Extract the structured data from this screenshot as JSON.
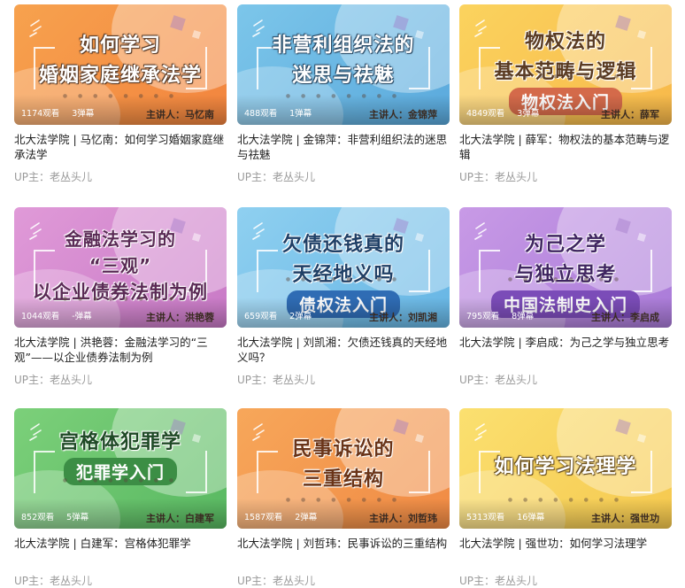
{
  "videos": [
    {
      "thumb": {
        "lines": [
          "如何学习",
          "婚姻家庭继承法学"
        ],
        "badge": "",
        "lecturer": "主讲人：马忆南"
      },
      "views": "1174观看",
      "danmaku": "3弹幕",
      "title": "北大法学院 | 马忆南：如何学习婚姻家庭继承法学",
      "uploader": "UP主：老丛头儿",
      "colors": {
        "bg1": "#f7a24e",
        "bg2": "#f2843e",
        "text": "#ffffff",
        "stroke": "#5a3d2a",
        "badge": ""
      }
    },
    {
      "thumb": {
        "lines": [
          "非营利组织法的",
          "迷思与祛魅"
        ],
        "badge": "",
        "lecturer": "主讲人：金锦萍"
      },
      "views": "488观看",
      "danmaku": "1弹幕",
      "title": "北大法学院 | 金锦萍：非营利组织法的迷思与祛魅",
      "uploader": "UP主：老丛头儿",
      "colors": {
        "bg1": "#7cc6ea",
        "bg2": "#5aa9dc",
        "text": "#ffffff",
        "stroke": "#2f4f6a",
        "badge": ""
      }
    },
    {
      "thumb": {
        "lines": [
          "物权法的",
          "基本范畴与逻辑"
        ],
        "badge": "物权法入门",
        "lecturer": "主讲人：薛军"
      },
      "views": "4849观看",
      "danmaku": "3弹幕",
      "title": "北大法学院 | 薛军：物权法的基本范畴与逻辑",
      "uploader": "UP主：老丛头儿",
      "colors": {
        "bg1": "#fbd35e",
        "bg2": "#f7b84a",
        "text": "#5a3b22",
        "stroke": "#ffffff",
        "badge": "#d46a4a"
      }
    },
    {
      "thumb": {
        "lines": [
          "金融法学习的",
          "“三观”",
          "以企业债券法制为例"
        ],
        "badge": "",
        "lecturer": "主讲人：洪艳蓉"
      },
      "views": "1044观看",
      "danmaku": "-弹幕",
      "title": "北大法学院 | 洪艳蓉：金融法学习的“三观”——以企业债券法制为例",
      "uploader": "UP主：老丛头儿",
      "colors": {
        "bg1": "#e09ad8",
        "bg2": "#c879c6",
        "text": "#5a2a55",
        "stroke": "#ffffff",
        "badge": ""
      }
    },
    {
      "thumb": {
        "lines": [
          "欠债还钱真的",
          "天经地义吗"
        ],
        "badge": "债权法入门",
        "lecturer": "主讲人：刘凯湘"
      },
      "views": "659观看",
      "danmaku": "2弹幕",
      "title": "北大法学院 | 刘凯湘：欠债还钱真的天经地义吗？",
      "uploader": "UP主：老丛头儿",
      "colors": {
        "bg1": "#8fd0f0",
        "bg2": "#66b5e4",
        "text": "#1f3f66",
        "stroke": "#ffffff",
        "badge": "#2f6cb4"
      }
    },
    {
      "thumb": {
        "lines": [
          "为己之学",
          "与独立思考"
        ],
        "badge": "中国法制史入门",
        "lecturer": "主讲人：李启成"
      },
      "views": "795观看",
      "danmaku": "8弹幕",
      "title": "北大法学院 | 李启成：为己之学与独立思考",
      "uploader": "UP主：老丛头儿",
      "colors": {
        "bg1": "#c89ae6",
        "bg2": "#a97ad8",
        "text": "#3f2560",
        "stroke": "#ffffff",
        "badge": "#7b4cb8"
      }
    },
    {
      "thumb": {
        "lines": [
          "宫格体犯罪学"
        ],
        "badge": "犯罪学入门",
        "lecturer": "主讲人：白建军"
      },
      "views": "852观看",
      "danmaku": "5弹幕",
      "title": "北大法学院 | 白建军：宫格体犯罪学",
      "uploader": "UP主：老丛头儿",
      "colors": {
        "bg1": "#7cd07a",
        "bg2": "#58b861",
        "text": "#1f4a26",
        "stroke": "#ffffff",
        "badge": "#3c8e45"
      }
    },
    {
      "thumb": {
        "lines": [
          "民事诉讼的",
          "三重结构"
        ],
        "badge": "",
        "lecturer": "主讲人：刘哲玮"
      },
      "views": "1587观看",
      "danmaku": "2弹幕",
      "title": "北大法学院 | 刘哲玮：民事诉讼的三重结构",
      "uploader": "UP主：老丛头儿",
      "colors": {
        "bg1": "#f7a75a",
        "bg2": "#f08a44",
        "text": "#6a3418",
        "stroke": "#ffffff",
        "badge": ""
      }
    },
    {
      "thumb": {
        "lines": [
          "如何学习法理学"
        ],
        "badge": "",
        "lecturer": "主讲人：强世功"
      },
      "views": "5313观看",
      "danmaku": "16弹幕",
      "title": "北大法学院 | 强世功：如何学习法理学",
      "uploader": "UP主：老丛头儿",
      "colors": {
        "bg1": "#fbe070",
        "bg2": "#f5c84e",
        "text": "#ffffff",
        "stroke": "#6a5020",
        "badge": ""
      }
    }
  ]
}
